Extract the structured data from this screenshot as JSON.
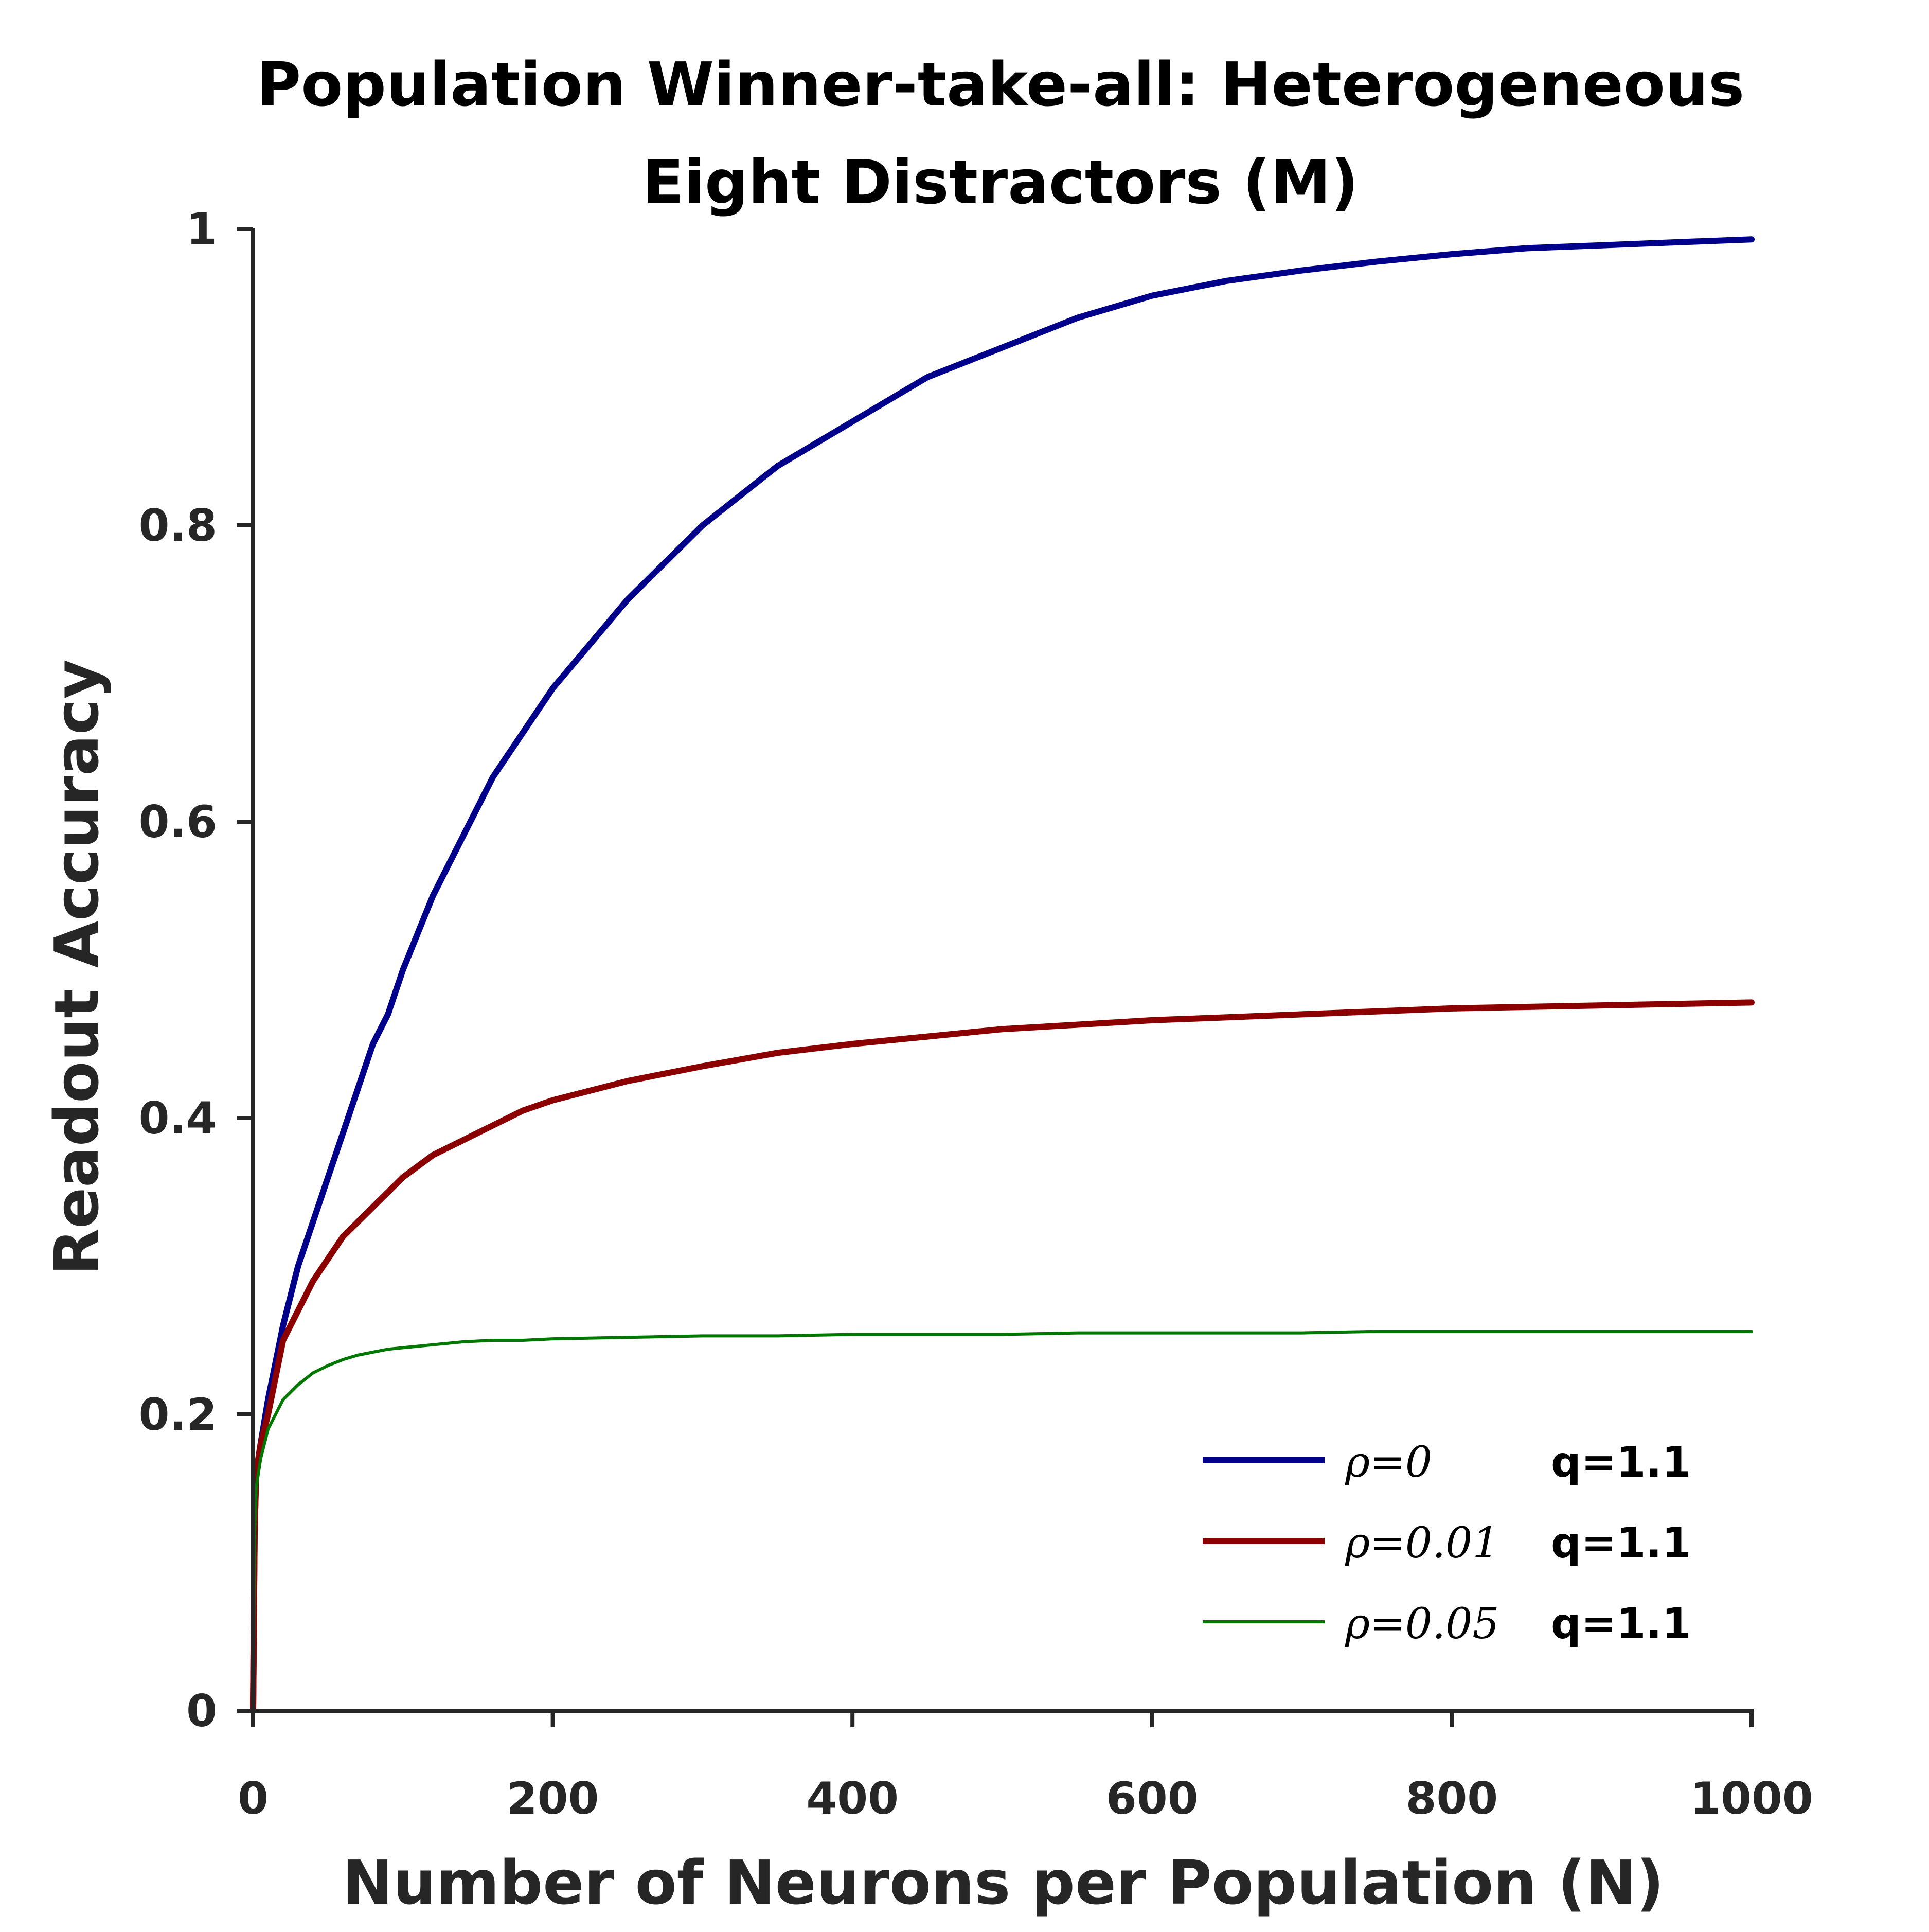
{
  "chart_data": {
    "type": "line",
    "title_lines": [
      "Population Winner-take-all: Heterogeneous",
      "Eight Distractors (M)"
    ],
    "xlabel": "Number of Neurons per Population (N)",
    "ylabel": "Readout Accuracy",
    "xlim": [
      0,
      1000
    ],
    "ylim": [
      0,
      1
    ],
    "xticks": [
      0,
      200,
      400,
      600,
      800,
      1000
    ],
    "yticks": [
      0,
      0.2,
      0.4,
      0.6,
      0.8,
      1
    ],
    "xtick_labels": [
      "0",
      "200",
      "400",
      "600",
      "800",
      "1000"
    ],
    "ytick_labels": [
      "0",
      "0.2",
      "0.4",
      "0.6",
      "0.8",
      "1"
    ],
    "grid": false,
    "legend_position": "bottom-right",
    "series": [
      {
        "name": "ρ=0 q=1.1",
        "rho_label": "ρ=0",
        "q_label": "q=1.1",
        "color": "#00008B",
        "x": [
          0,
          1,
          2,
          5,
          10,
          20,
          30,
          40,
          50,
          60,
          70,
          80,
          90,
          100,
          120,
          140,
          160,
          180,
          200,
          250,
          300,
          350,
          400,
          450,
          500,
          550,
          600,
          650,
          700,
          750,
          800,
          850,
          900,
          950,
          1000
        ],
        "y": [
          0,
          0.12,
          0.16,
          0.18,
          0.21,
          0.26,
          0.3,
          0.33,
          0.36,
          0.39,
          0.42,
          0.45,
          0.47,
          0.5,
          0.55,
          0.59,
          0.63,
          0.66,
          0.69,
          0.75,
          0.8,
          0.84,
          0.87,
          0.9,
          0.92,
          0.94,
          0.955,
          0.965,
          0.972,
          0.978,
          0.983,
          0.987,
          0.989,
          0.991,
          0.993
        ]
      },
      {
        "name": "ρ=0.01 q=1.1",
        "rho_label": "ρ=0.01",
        "q_label": "q=1.1",
        "color": "#8B0000",
        "x": [
          0,
          1,
          2,
          5,
          10,
          20,
          30,
          40,
          50,
          60,
          70,
          80,
          90,
          100,
          120,
          140,
          160,
          180,
          200,
          250,
          300,
          350,
          400,
          450,
          500,
          550,
          600,
          650,
          700,
          750,
          800,
          850,
          900,
          950,
          1000
        ],
        "y": [
          0,
          0.12,
          0.16,
          0.18,
          0.2,
          0.25,
          0.27,
          0.29,
          0.305,
          0.32,
          0.33,
          0.34,
          0.35,
          0.36,
          0.375,
          0.385,
          0.395,
          0.405,
          0.412,
          0.425,
          0.435,
          0.444,
          0.45,
          0.455,
          0.46,
          0.463,
          0.466,
          0.468,
          0.47,
          0.472,
          0.474,
          0.475,
          0.476,
          0.477,
          0.478
        ]
      },
      {
        "name": "ρ=0.05 q=1.1",
        "rho_label": "ρ=0.05",
        "q_label": "q=1.1",
        "color": "#007800",
        "x": [
          0,
          1,
          2,
          5,
          10,
          20,
          30,
          40,
          50,
          60,
          70,
          80,
          90,
          100,
          120,
          140,
          160,
          180,
          200,
          250,
          300,
          350,
          400,
          450,
          500,
          550,
          600,
          650,
          700,
          750,
          800,
          850,
          900,
          950,
          1000
        ],
        "y": [
          0,
          0.12,
          0.15,
          0.17,
          0.19,
          0.21,
          0.22,
          0.228,
          0.233,
          0.237,
          0.24,
          0.242,
          0.244,
          0.245,
          0.247,
          0.249,
          0.25,
          0.25,
          0.251,
          0.252,
          0.253,
          0.253,
          0.254,
          0.254,
          0.254,
          0.255,
          0.255,
          0.255,
          0.255,
          0.256,
          0.256,
          0.256,
          0.256,
          0.256,
          0.256
        ]
      }
    ]
  }
}
